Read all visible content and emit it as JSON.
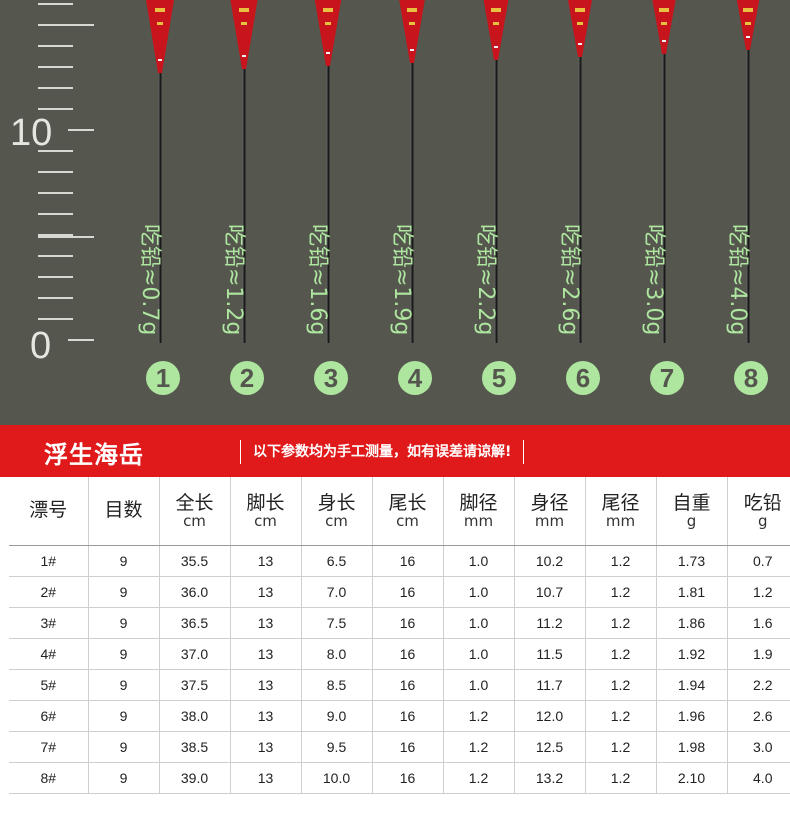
{
  "ruler": {
    "label_10": "10",
    "label_0": "0"
  },
  "floats": [
    {
      "weight": "吃铅≈0.7g",
      "number": "1"
    },
    {
      "weight": "吃铅≈1.2g",
      "number": "2"
    },
    {
      "weight": "吃铅≈1.6g",
      "number": "3"
    },
    {
      "weight": "吃铅≈1.9g",
      "number": "4"
    },
    {
      "weight": "吃铅≈2.2g",
      "number": "5"
    },
    {
      "weight": "吃铅≈2.6g",
      "number": "6"
    },
    {
      "weight": "吃铅≈3.0g",
      "number": "7"
    },
    {
      "weight": "吃铅≈4.0g",
      "number": "8"
    }
  ],
  "banner": {
    "brand": "浮生海岳",
    "note": "以下参数均为手工测量，如有误差请谅解!"
  },
  "table": {
    "headers": [
      {
        "name": "漂号",
        "unit": ""
      },
      {
        "name": "目数",
        "unit": ""
      },
      {
        "name": "全长",
        "unit": "cm"
      },
      {
        "name": "脚长",
        "unit": "cm"
      },
      {
        "name": "身长",
        "unit": "cm"
      },
      {
        "name": "尾长",
        "unit": "cm"
      },
      {
        "name": "脚径",
        "unit": "mm"
      },
      {
        "name": "身径",
        "unit": "mm"
      },
      {
        "name": "尾径",
        "unit": "mm"
      },
      {
        "name": "自重",
        "unit": "g"
      },
      {
        "name": "吃铅",
        "unit": "g"
      }
    ],
    "rows": [
      [
        "1#",
        "9",
        "35.5",
        "13",
        "6.5",
        "16",
        "1.0",
        "10.2",
        "1.2",
        "1.73",
        "0.7"
      ],
      [
        "2#",
        "9",
        "36.0",
        "13",
        "7.0",
        "16",
        "1.0",
        "10.7",
        "1.2",
        "1.81",
        "1.2"
      ],
      [
        "3#",
        "9",
        "36.5",
        "13",
        "7.5",
        "16",
        "1.0",
        "11.2",
        "1.2",
        "1.86",
        "1.6"
      ],
      [
        "4#",
        "9",
        "37.0",
        "13",
        "8.0",
        "16",
        "1.0",
        "11.5",
        "1.2",
        "1.92",
        "1.9"
      ],
      [
        "5#",
        "9",
        "37.5",
        "13",
        "8.5",
        "16",
        "1.0",
        "11.7",
        "1.2",
        "1.94",
        "2.2"
      ],
      [
        "6#",
        "9",
        "38.0",
        "13",
        "9.0",
        "16",
        "1.2",
        "12.0",
        "1.2",
        "1.96",
        "2.6"
      ],
      [
        "7#",
        "9",
        "38.5",
        "13",
        "9.5",
        "16",
        "1.2",
        "12.5",
        "1.2",
        "1.98",
        "3.0"
      ],
      [
        "8#",
        "9",
        "39.0",
        "13",
        "10.0",
        "16",
        "1.2",
        "13.2",
        "1.2",
        "2.10",
        "4.0"
      ]
    ]
  },
  "colors": {
    "background": "#55574f",
    "float_body": "#c8141c",
    "gold_marking": "#e8c040",
    "label_green": "#aee6a0",
    "banner_red": "#e01a1a"
  }
}
